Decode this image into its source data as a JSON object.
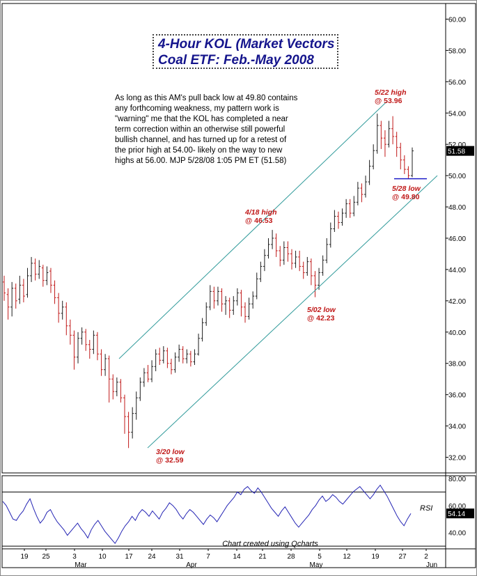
{
  "chart_data": {
    "type": "candlestick",
    "title_lines": [
      "4-Hour KOL (Market Vectors",
      "Coal ETF: Feb.-May 2008"
    ],
    "commentary_lines": [
      "As long as this AM's pull back low at 49.80 contains",
      "any forthcoming weakness, my pattern work is",
      "\"warning\" me that the KOL has completed a near",
      "term correction within an otherwise still powerful",
      "bullish channel, and has turned up for a retest of",
      "the prior high at 54.00- likely on the way to new",
      "highs at 56.00.  MJP  5/28/08  1:05 PM ET  (51.58)"
    ],
    "price_axis": {
      "ylim": [
        31,
        61
      ],
      "ticks": [
        "32.00",
        "34.00",
        "36.00",
        "38.00",
        "40.00",
        "42.00",
        "44.00",
        "46.00",
        "48.00",
        "50.00",
        "52.00",
        "54.00",
        "56.00",
        "58.00",
        "60.00"
      ]
    },
    "last_price": "51.58",
    "x_ticks": [
      "19",
      "25",
      "3",
      "10",
      "17",
      "24",
      "31",
      "7",
      "14",
      "21",
      "28",
      "5",
      "12",
      "19",
      "27",
      "2"
    ],
    "month_labels": [
      "Mar",
      "Apr",
      "May",
      "Jun"
    ],
    "annotations": [
      {
        "lines": [
          "5/22 high",
          "@ 53.96"
        ],
        "date": "5/22",
        "price": 53.96
      },
      {
        "lines": [
          "4/18 high",
          "@ 46.53"
        ],
        "date": "4/18",
        "price": 46.53
      },
      {
        "lines": [
          "5/02 low",
          "@ 42.23"
        ],
        "date": "5/02",
        "price": 42.23
      },
      {
        "lines": [
          "3/20 low",
          "@ 32.59"
        ],
        "date": "3/20",
        "price": 32.59
      },
      {
        "lines": [
          "5/28 low",
          "@ 49.80"
        ],
        "date": "5/28",
        "price": 49.8
      }
    ],
    "channel_lines": {
      "upper": [
        {
          "date": "3/14",
          "price": 38.3
        },
        {
          "date": "5/22",
          "price": 54.2
        }
      ],
      "lower": [
        {
          "date": "3/20",
          "price": 32.6
        },
        {
          "date": "5/29",
          "price": 50.0
        }
      ]
    },
    "support_line_price": 49.8,
    "series": [
      {
        "values": [
          [
            43.2,
            42.5,
            43.6,
            42.0
          ],
          [
            42.4,
            41.6,
            42.8,
            40.8
          ],
          [
            41.6,
            42.8,
            43.2,
            41.0
          ],
          [
            42.8,
            42.0,
            43.1,
            41.5
          ],
          [
            42.1,
            43.0,
            43.6,
            41.8
          ],
          [
            43.0,
            42.3,
            43.4,
            41.9
          ],
          [
            42.4,
            43.6,
            44.1,
            42.2
          ],
          [
            43.6,
            44.4,
            44.8,
            43.2
          ],
          [
            44.4,
            43.7,
            44.7,
            43.3
          ],
          [
            43.7,
            44.2,
            44.6,
            43.4
          ],
          [
            44.1,
            43.3,
            44.3,
            42.9
          ],
          [
            43.3,
            43.8,
            44.2,
            43.0
          ],
          [
            43.9,
            43.0,
            44.1,
            42.5
          ],
          [
            43.0,
            42.2,
            43.3,
            41.8
          ],
          [
            42.2,
            41.2,
            42.5,
            40.6
          ],
          [
            41.2,
            41.6,
            42.0,
            40.8
          ],
          [
            41.6,
            40.4,
            41.9,
            39.8
          ],
          [
            40.4,
            39.8,
            40.8,
            39.2
          ],
          [
            39.8,
            38.4,
            40.1,
            37.6
          ],
          [
            38.4,
            39.6,
            40.0,
            38.0
          ],
          [
            39.6,
            40.0,
            40.3,
            39.2
          ],
          [
            40.0,
            39.2,
            40.2,
            38.8
          ],
          [
            39.2,
            38.9,
            39.5,
            38.3
          ],
          [
            38.9,
            39.8,
            40.1,
            38.6
          ],
          [
            39.8,
            38.6,
            40.0,
            38.2
          ],
          [
            38.6,
            37.6,
            38.9,
            37.2
          ],
          [
            37.6,
            38.3,
            38.6,
            37.2
          ],
          [
            38.3,
            37.0,
            38.5,
            35.5
          ],
          [
            37.0,
            36.2,
            37.3,
            35.7
          ],
          [
            36.2,
            36.8,
            37.1,
            35.9
          ],
          [
            36.8,
            35.8,
            37.0,
            35.5
          ],
          [
            35.8,
            34.6,
            36.0,
            33.5
          ],
          [
            34.6,
            33.6,
            34.9,
            32.59
          ],
          [
            33.6,
            34.8,
            35.2,
            33.2
          ],
          [
            34.8,
            35.8,
            36.2,
            34.4
          ],
          [
            35.8,
            36.8,
            37.1,
            35.6
          ],
          [
            36.8,
            37.4,
            37.7,
            36.5
          ],
          [
            37.4,
            37.0,
            37.9,
            36.8
          ],
          [
            37.0,
            37.8,
            38.2,
            36.8
          ],
          [
            37.8,
            38.6,
            38.9,
            37.5
          ],
          [
            38.6,
            38.2,
            39.0,
            37.9
          ],
          [
            38.2,
            38.8,
            39.1,
            38.0
          ],
          [
            38.8,
            38.0,
            39.0,
            37.7
          ],
          [
            38.0,
            37.6,
            38.3,
            37.3
          ],
          [
            37.6,
            38.4,
            38.7,
            37.4
          ],
          [
            38.4,
            38.9,
            39.2,
            38.1
          ],
          [
            38.9,
            38.3,
            39.1,
            38.0
          ],
          [
            38.3,
            38.6,
            38.9,
            38.0
          ],
          [
            38.6,
            38.1,
            38.8,
            37.8
          ],
          [
            38.1,
            38.6,
            38.9,
            37.9
          ],
          [
            38.6,
            39.6,
            39.9,
            38.5
          ],
          [
            39.6,
            40.6,
            40.9,
            39.4
          ],
          [
            40.6,
            41.6,
            41.9,
            40.4
          ],
          [
            41.6,
            42.6,
            43.0,
            41.4
          ],
          [
            42.6,
            42.0,
            42.9,
            41.5
          ],
          [
            42.0,
            42.6,
            42.9,
            41.7
          ],
          [
            42.6,
            41.8,
            42.8,
            41.3
          ],
          [
            41.8,
            42.0,
            42.3,
            41.1
          ],
          [
            42.0,
            41.4,
            42.2,
            40.9
          ],
          [
            41.4,
            42.0,
            42.3,
            41.1
          ],
          [
            42.0,
            42.5,
            42.8,
            41.7
          ],
          [
            42.5,
            41.6,
            42.7,
            41.0
          ],
          [
            41.6,
            41.0,
            41.9,
            40.6
          ],
          [
            41.0,
            41.8,
            42.2,
            40.8
          ],
          [
            41.8,
            42.3,
            42.6,
            41.5
          ],
          [
            42.3,
            43.4,
            43.8,
            42.1
          ],
          [
            43.4,
            44.2,
            44.5,
            43.2
          ],
          [
            44.2,
            44.9,
            45.3,
            43.9
          ],
          [
            44.9,
            45.6,
            46.0,
            44.7
          ],
          [
            45.6,
            46.0,
            46.53,
            45.3
          ],
          [
            46.0,
            45.2,
            46.3,
            44.8
          ],
          [
            45.2,
            44.6,
            45.5,
            44.2
          ],
          [
            44.6,
            45.4,
            45.8,
            44.3
          ],
          [
            45.4,
            45.0,
            45.8,
            44.5
          ],
          [
            45.0,
            44.4,
            45.3,
            44.0
          ],
          [
            44.4,
            44.8,
            45.2,
            44.1
          ],
          [
            44.8,
            44.2,
            45.2,
            43.9
          ],
          [
            44.2,
            43.8,
            44.5,
            43.4
          ],
          [
            43.8,
            44.5,
            44.8,
            43.6
          ],
          [
            44.5,
            43.6,
            44.7,
            43.0
          ],
          [
            43.6,
            43.0,
            43.9,
            42.23
          ],
          [
            43.0,
            43.8,
            44.1,
            42.7
          ],
          [
            43.8,
            44.6,
            44.9,
            43.6
          ],
          [
            44.6,
            45.6,
            46.0,
            44.4
          ],
          [
            45.6,
            46.6,
            47.0,
            45.4
          ],
          [
            46.6,
            47.4,
            47.8,
            46.4
          ],
          [
            47.4,
            47.0,
            47.7,
            46.6
          ],
          [
            47.0,
            47.6,
            47.9,
            46.8
          ],
          [
            47.6,
            48.2,
            48.5,
            47.3
          ],
          [
            48.2,
            47.6,
            48.5,
            47.3
          ],
          [
            47.6,
            48.3,
            48.7,
            47.4
          ],
          [
            48.3,
            49.2,
            49.6,
            48.1
          ],
          [
            49.2,
            48.8,
            49.5,
            48.3
          ],
          [
            48.8,
            49.6,
            50.0,
            48.6
          ],
          [
            49.6,
            50.6,
            51.0,
            49.4
          ],
          [
            50.6,
            51.6,
            52.0,
            50.4
          ],
          [
            51.6,
            53.2,
            53.96,
            51.4
          ],
          [
            53.2,
            52.4,
            53.5,
            51.7
          ],
          [
            52.4,
            52.0,
            52.9,
            51.2
          ],
          [
            52.0,
            53.0,
            53.5,
            51.8
          ],
          [
            53.0,
            52.5,
            53.8,
            52.0
          ],
          [
            52.5,
            51.8,
            52.8,
            51.2
          ],
          [
            51.8,
            51.0,
            52.1,
            50.4
          ],
          [
            51.0,
            50.4,
            51.3,
            50.1
          ],
          [
            50.4,
            50.0,
            50.6,
            49.8
          ],
          [
            50.0,
            51.58,
            51.8,
            49.9
          ]
        ]
      }
    ],
    "rsi": {
      "label": "RSI",
      "last_value": "54.14",
      "ticks": [
        "40.00",
        "60.00",
        "80.00"
      ],
      "ylim": [
        28,
        82
      ],
      "values": [
        63,
        60,
        55,
        50,
        49,
        53,
        56,
        61,
        65,
        58,
        52,
        47,
        50,
        55,
        57,
        52,
        48,
        45,
        42,
        38,
        41,
        44,
        47,
        43,
        40,
        36,
        42,
        46,
        49,
        45,
        41,
        38,
        35,
        32,
        36,
        41,
        45,
        48,
        52,
        49,
        54,
        57,
        55,
        52,
        56,
        53,
        50,
        55,
        58,
        62,
        60,
        57,
        53,
        50,
        54,
        57,
        55,
        52,
        49,
        46,
        50,
        53,
        51,
        48,
        52,
        56,
        60,
        63,
        66,
        70,
        68,
        72,
        74,
        71,
        69,
        73,
        70,
        66,
        62,
        58,
        55,
        52,
        56,
        59,
        55,
        51,
        47,
        44,
        47,
        50,
        53,
        57,
        60,
        64,
        67,
        63,
        65,
        68,
        66,
        63,
        61,
        64,
        67,
        70,
        72,
        74,
        71,
        68,
        65,
        68,
        72,
        75,
        71,
        67,
        62,
        57,
        52,
        48,
        45,
        50,
        54.14
      ]
    },
    "credit": "Chart created using Qcharts"
  },
  "colors": {
    "up": "#1c1c1c",
    "down": "#c01818",
    "channel": "#2f9a9a",
    "title": "#14148c",
    "annotation": "#c01818",
    "rsi_line": "#2424b4",
    "support_line": "#1c1cc8"
  }
}
